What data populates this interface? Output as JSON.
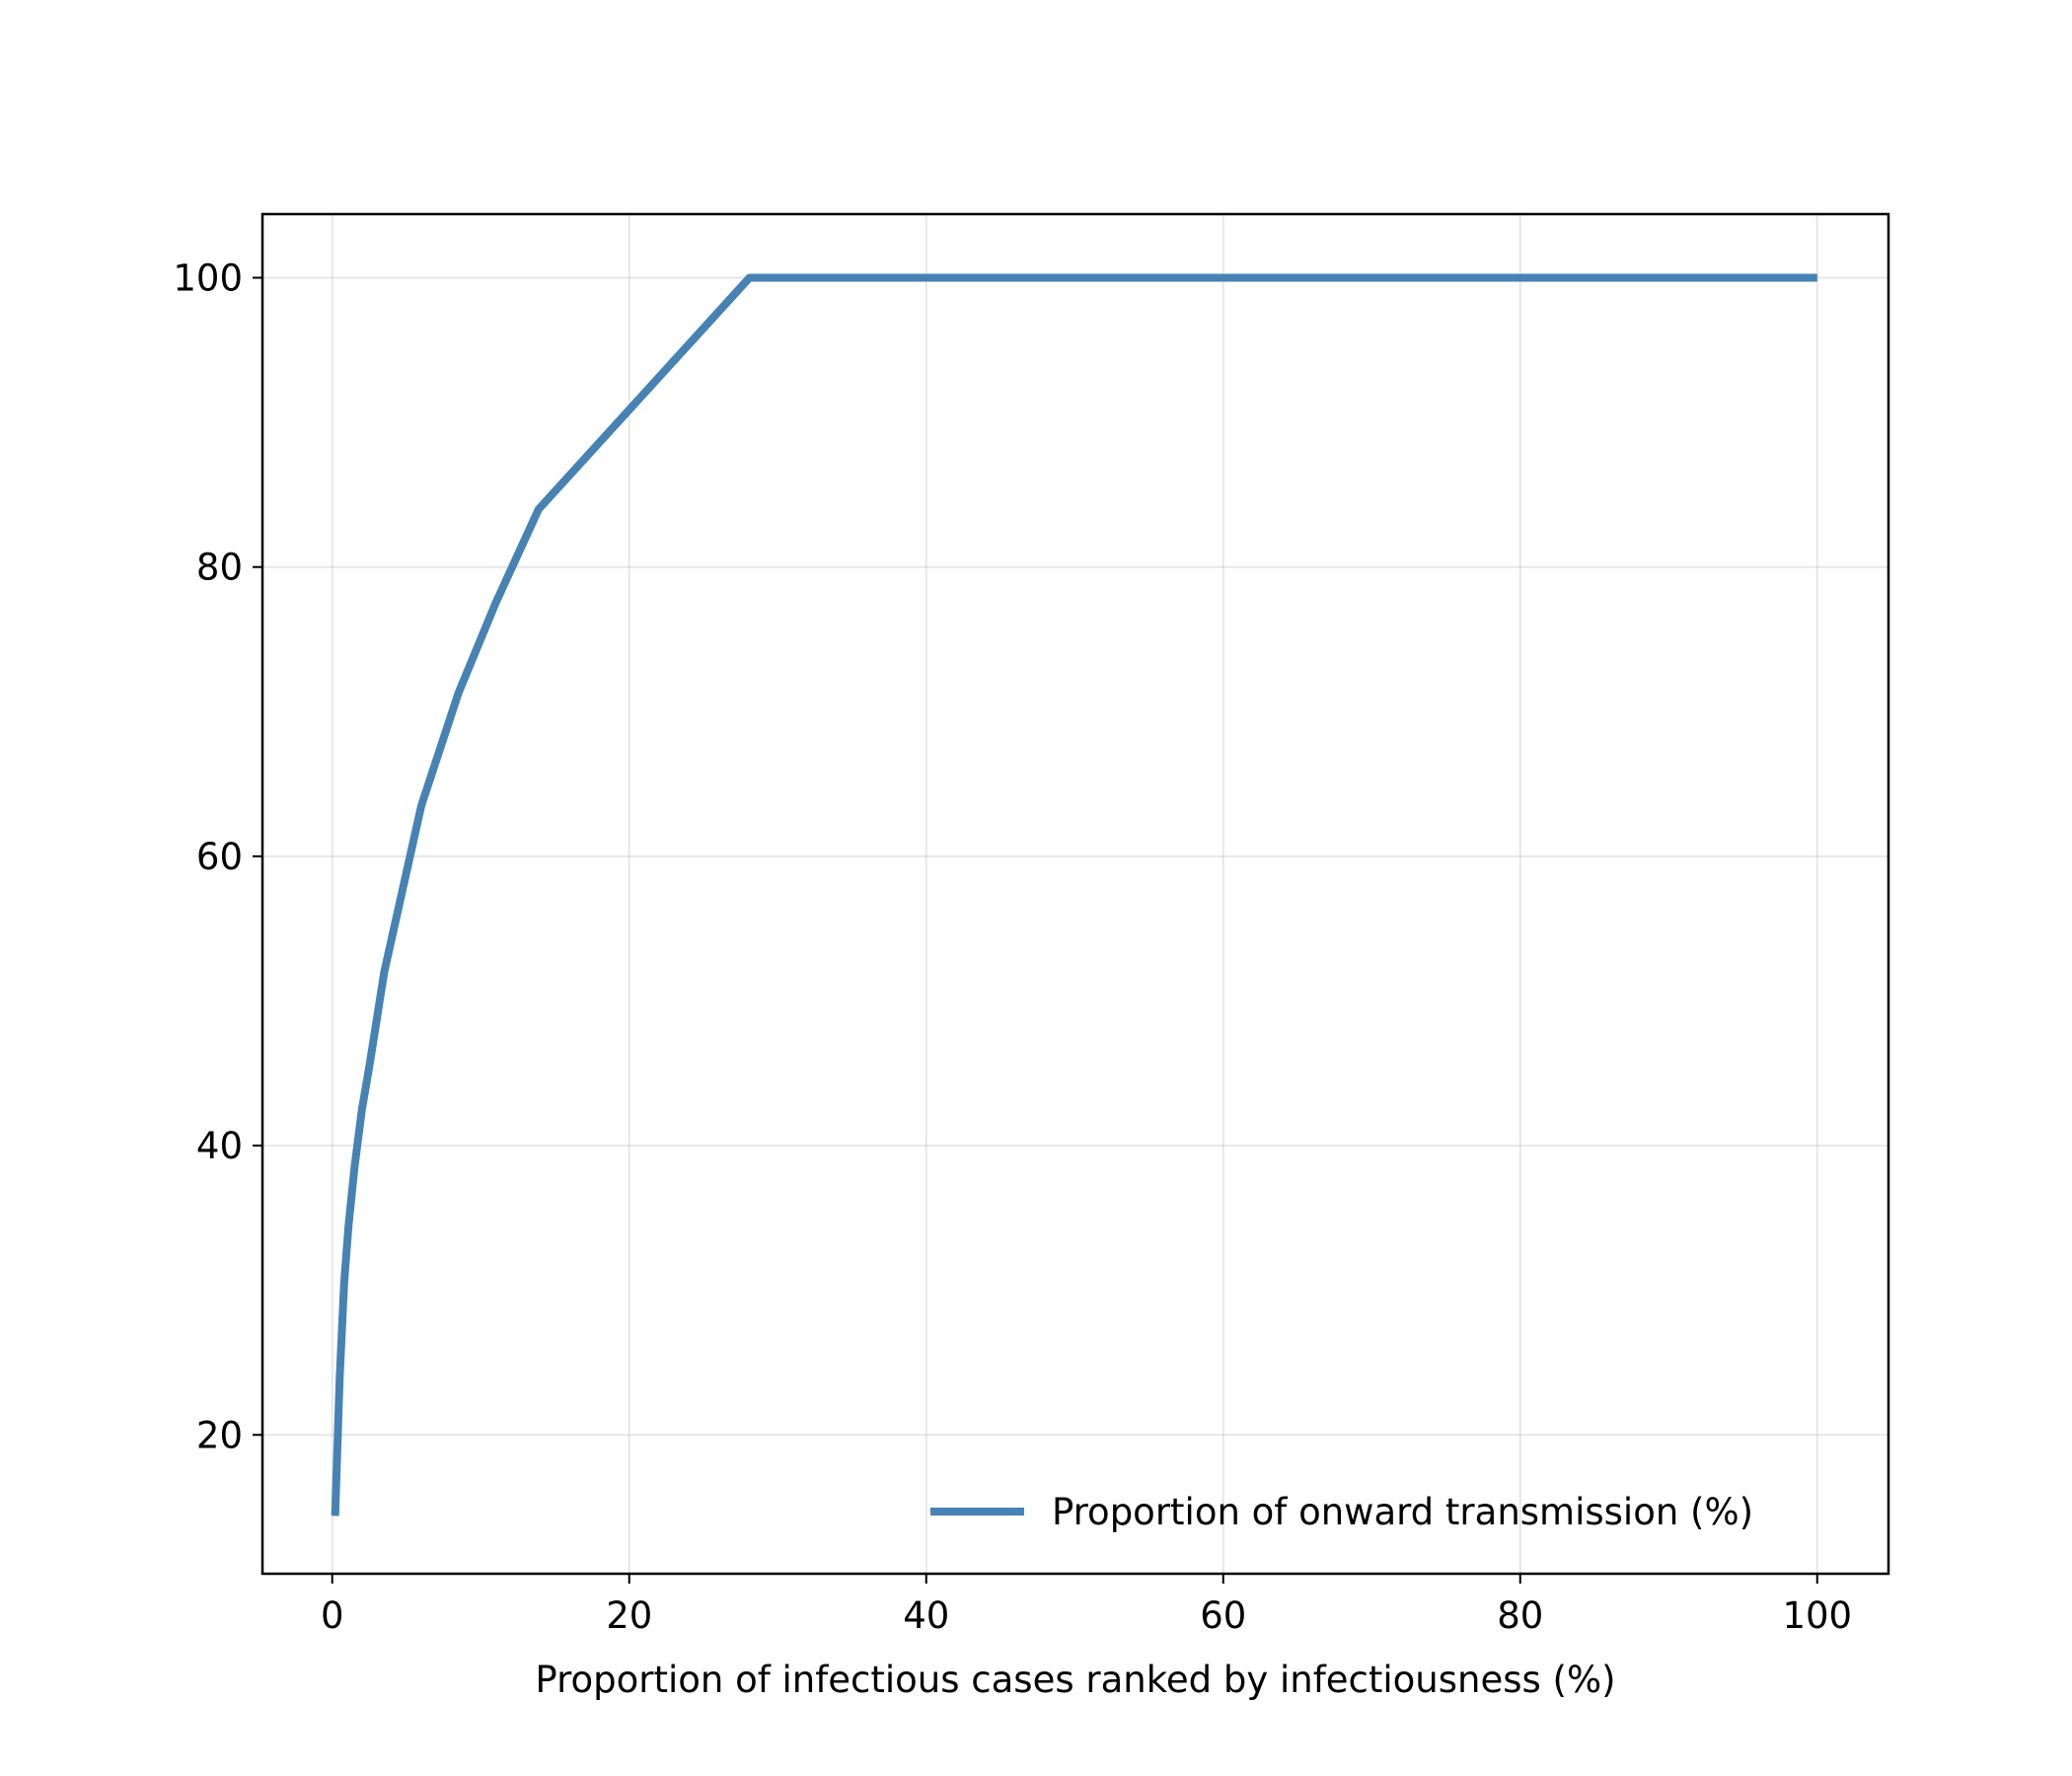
{
  "chart_data": {
    "type": "line",
    "title": "",
    "xlabel": "Proportion of infectious cases ranked by infectiousness (%)",
    "ylabel": "",
    "xlim": [
      -4.7,
      104.8
    ],
    "ylim": [
      10.4,
      104.4
    ],
    "xticks": [
      0,
      20,
      40,
      60,
      80,
      100
    ],
    "xtick_labels": [
      "0",
      "20",
      "40",
      "60",
      "80",
      "100"
    ],
    "yticks": [
      20,
      40,
      60,
      80,
      100
    ],
    "ytick_labels": [
      "20",
      "40",
      "60",
      "80",
      "100"
    ],
    "grid": true,
    "legend_position": "lower-right",
    "series": [
      {
        "name": "Proportion of onward transmission (%)",
        "color": "#4682b4",
        "x": [
          0.2,
          0.5,
          0.8,
          1.1,
          1.5,
          2.0,
          2.5,
          3.5,
          6.0,
          8.5,
          11.0,
          13.9,
          28.1,
          100.0
        ],
        "y": [
          14.4,
          24.0,
          30.5,
          34.5,
          38.5,
          42.5,
          45.5,
          52.0,
          63.5,
          71.3,
          77.5,
          84.0,
          100.0,
          100.0
        ]
      }
    ]
  }
}
